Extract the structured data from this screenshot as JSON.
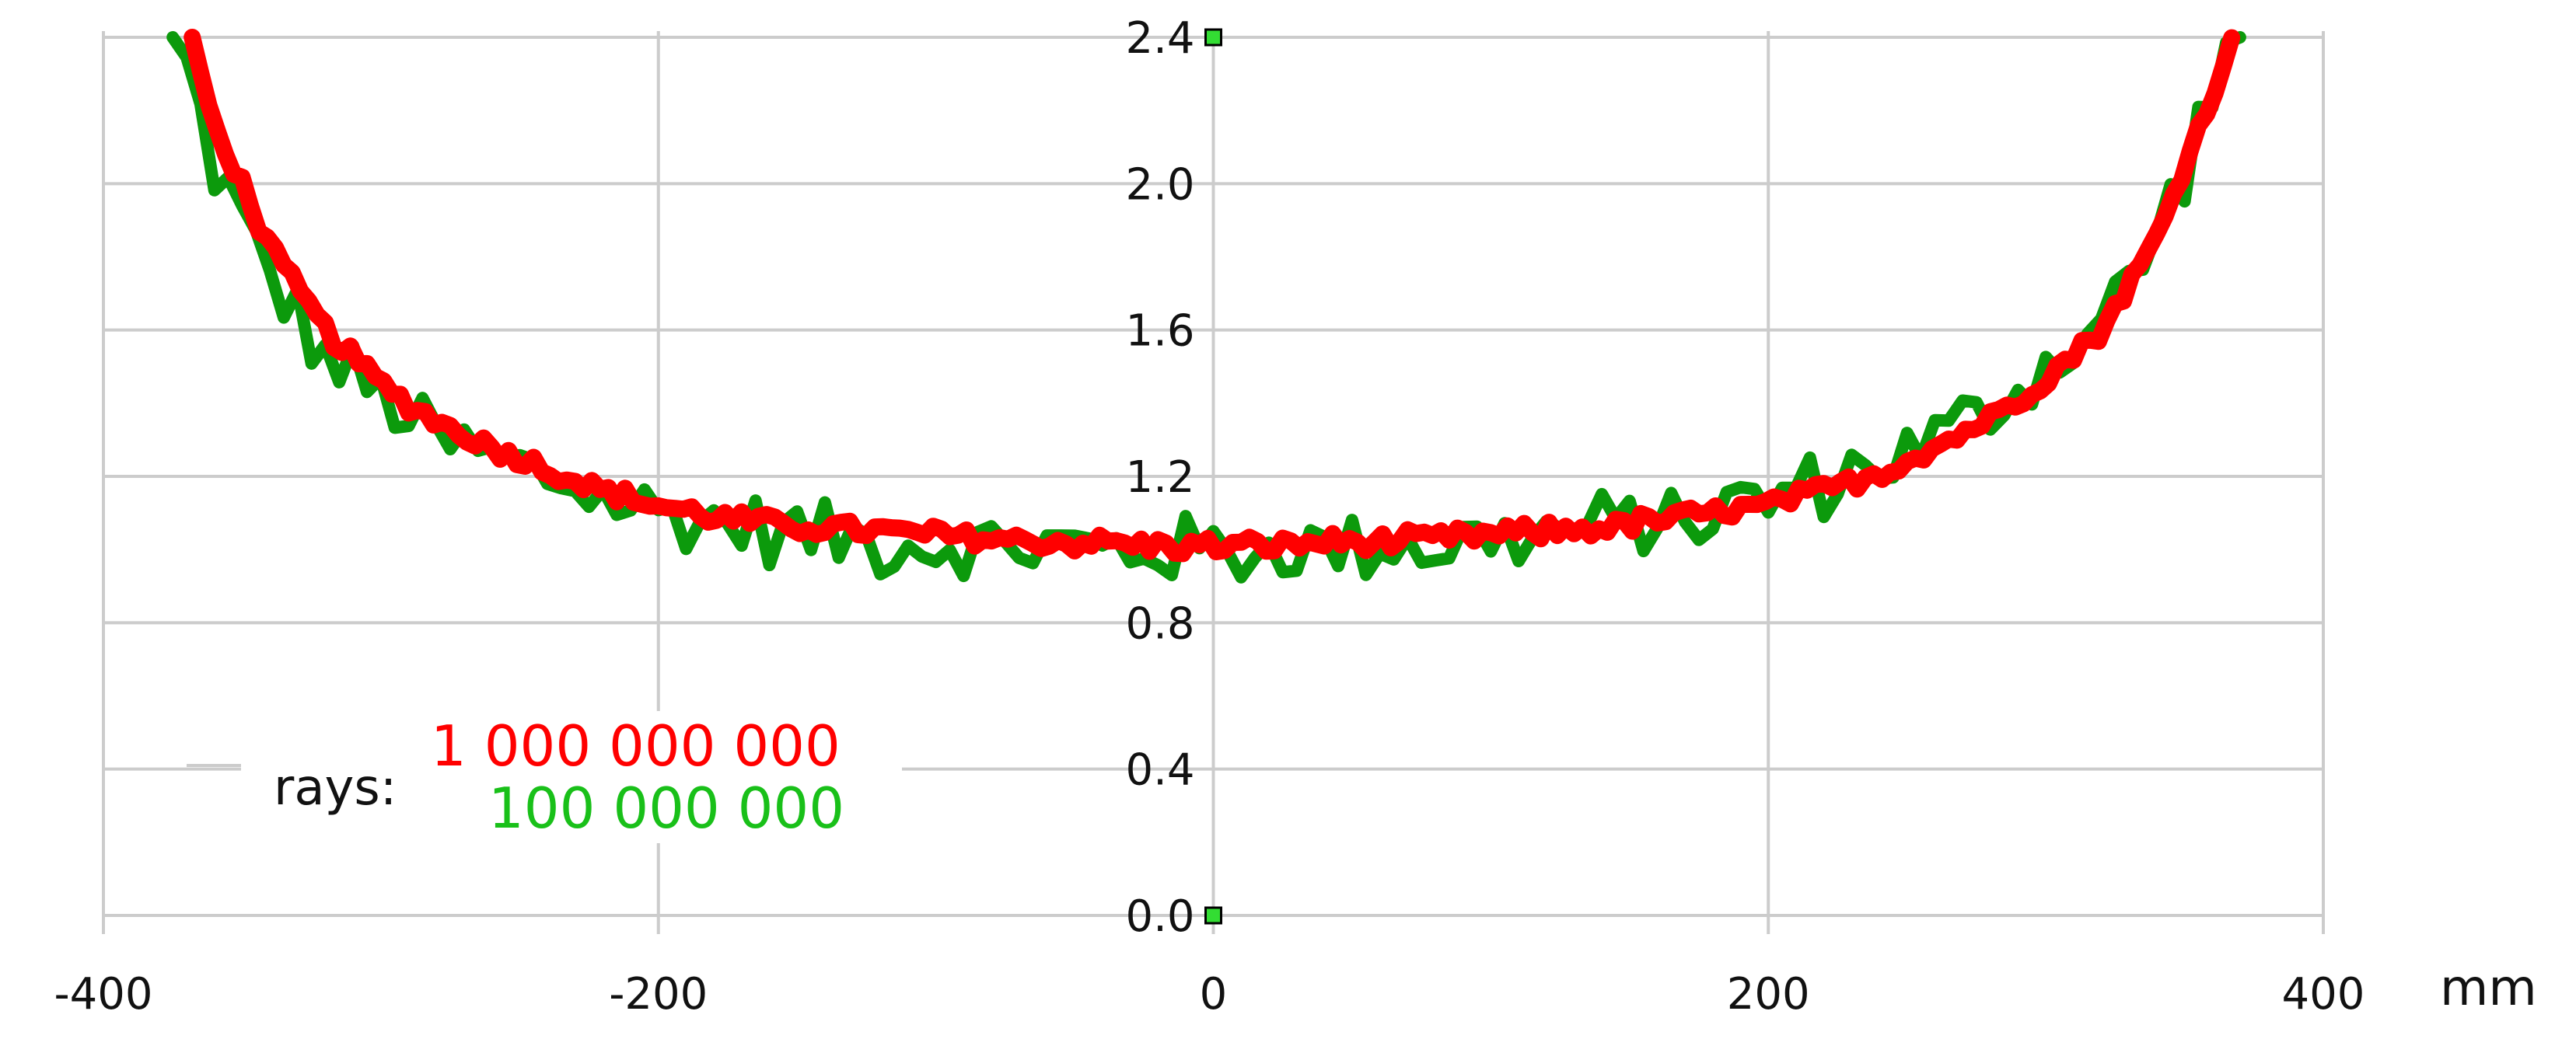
{
  "chart_data": {
    "type": "line",
    "title": "",
    "xlabel": "mm",
    "ylabel": "",
    "xlim": [
      -400,
      400
    ],
    "ylim": [
      0.0,
      2.4
    ],
    "x_ticks": [
      "-400",
      "-200",
      "0",
      "200",
      "400"
    ],
    "y_ticks": [
      "0.0",
      "0.4",
      "0.8",
      "1.2",
      "1.6",
      "2.0",
      "2.4"
    ],
    "grid": true,
    "legend_title": "rays:",
    "legend_position": "bottom-left",
    "colors": {
      "green": "#0c9a0c",
      "red": "#ff0000",
      "grid": "#cccccc",
      "marker": "#33dd33"
    },
    "series": [
      {
        "name": "100 000 000",
        "x": [
          -375,
          -360,
          -340,
          -320,
          -300,
          -280,
          -260,
          -240,
          -220,
          -200,
          -180,
          -160,
          -140,
          -120,
          -100,
          -80,
          -60,
          -40,
          -20,
          0,
          20,
          40,
          60,
          80,
          100,
          120,
          140,
          160,
          180,
          200,
          220,
          240,
          260,
          280,
          300,
          320,
          340,
          355,
          370
        ],
        "values": [
          2.45,
          2.05,
          1.75,
          1.52,
          1.42,
          1.3,
          1.25,
          1.2,
          1.14,
          1.1,
          1.08,
          1.05,
          1.04,
          1.02,
          1.02,
          1.0,
          1.01,
          1.0,
          1.0,
          1.0,
          1.0,
          1.0,
          1.02,
          1.01,
          1.03,
          1.04,
          1.06,
          1.08,
          1.1,
          1.14,
          1.18,
          1.24,
          1.3,
          1.38,
          1.5,
          1.62,
          1.85,
          2.15,
          2.45
        ]
      },
      {
        "name": "1 000 000 000",
        "x": [
          -368,
          -360,
          -350,
          -340,
          -320,
          -300,
          -280,
          -260,
          -240,
          -220,
          -200,
          -180,
          -160,
          -140,
          -120,
          -100,
          -80,
          -60,
          -40,
          -20,
          0,
          20,
          40,
          60,
          80,
          100,
          120,
          140,
          160,
          180,
          200,
          220,
          240,
          260,
          280,
          300,
          320,
          340,
          350,
          360,
          368
        ],
        "values": [
          2.4,
          2.15,
          2.0,
          1.82,
          1.6,
          1.45,
          1.35,
          1.28,
          1.22,
          1.16,
          1.12,
          1.09,
          1.07,
          1.06,
          1.05,
          1.04,
          1.03,
          1.02,
          1.02,
          1.01,
          1.01,
          1.01,
          1.02,
          1.02,
          1.03,
          1.04,
          1.05,
          1.06,
          1.08,
          1.1,
          1.12,
          1.16,
          1.21,
          1.28,
          1.36,
          1.47,
          1.6,
          1.85,
          2.05,
          2.25,
          2.4
        ]
      }
    ]
  }
}
